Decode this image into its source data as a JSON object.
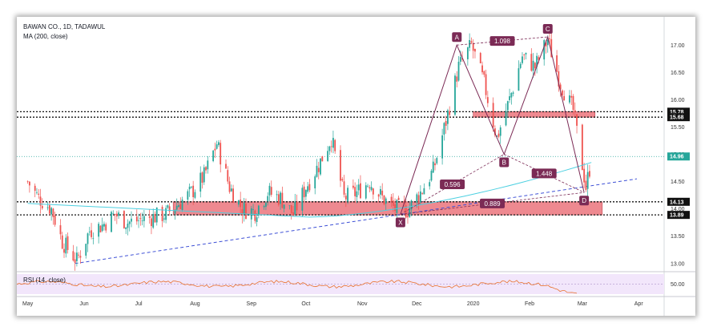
{
  "header": {
    "title": "BAWAN CO., 1D, TADAWUL",
    "ma_label": "MA (200, close)",
    "rsi_label": "RSI (14, close)"
  },
  "colors": {
    "up": "#26a69a",
    "down": "#ef5350",
    "ma": "#4dd0e1",
    "pattern": "#7b2a55",
    "trend": "#3f51d6",
    "zone": "#ea6b74",
    "price_line": "#26a69a"
  },
  "chart_data": [
    {
      "type": "candlestick",
      "title": "BAWAN CO., 1D, TADAWUL",
      "x_ticks": [
        "May",
        "Jun",
        "Jul",
        "Aug",
        "Sep",
        "Oct",
        "Nov",
        "Dec",
        "2020",
        "Feb",
        "Mar",
        "Apr"
      ],
      "y_ticks": [
        13.0,
        13.5,
        14.0,
        14.5,
        15.0,
        15.5,
        16.0,
        16.5,
        17.0
      ],
      "ylim": [
        12.85,
        17.4
      ],
      "price_badges": [
        {
          "value": "15.78",
          "style": "dark"
        },
        {
          "value": "15.68",
          "style": "dark"
        },
        {
          "value": "14.96",
          "style": "teal"
        },
        {
          "value": "14.13",
          "style": "dark"
        },
        {
          "value": "13.89",
          "style": "dark"
        }
      ],
      "horizontal_levels": [
        15.78,
        15.68,
        14.13,
        13.89
      ],
      "last_price": 14.96,
      "close_path": [
        [
          "2019-05-01",
          14.5
        ],
        [
          "2019-05-07",
          14.2
        ],
        [
          "2019-05-14",
          14.0
        ],
        [
          "2019-05-20",
          13.4
        ],
        [
          "2019-05-28",
          13.05
        ],
        [
          "2019-06-04",
          13.6
        ],
        [
          "2019-06-11",
          13.7
        ],
        [
          "2019-06-18",
          13.9
        ],
        [
          "2019-06-25",
          13.75
        ],
        [
          "2019-07-02",
          13.8
        ],
        [
          "2019-07-09",
          13.85
        ],
        [
          "2019-07-16",
          13.9
        ],
        [
          "2019-07-23",
          14.1
        ],
        [
          "2019-07-30",
          14.3
        ],
        [
          "2019-08-06",
          14.6
        ],
        [
          "2019-08-13",
          15.2
        ],
        [
          "2019-08-20",
          14.4
        ],
        [
          "2019-08-27",
          14.0
        ],
        [
          "2019-09-03",
          13.95
        ],
        [
          "2019-09-10",
          14.3
        ],
        [
          "2019-09-17",
          14.2
        ],
        [
          "2019-09-24",
          13.9
        ],
        [
          "2019-10-01",
          14.4
        ],
        [
          "2019-10-08",
          14.8
        ],
        [
          "2019-10-15",
          15.3
        ],
        [
          "2019-10-22",
          14.2
        ],
        [
          "2019-10-29",
          14.3
        ],
        [
          "2019-11-05",
          14.5
        ],
        [
          "2019-11-12",
          14.2
        ],
        [
          "2019-11-19",
          14.0
        ],
        [
          "2019-11-26",
          13.98
        ],
        [
          "2019-12-03",
          14.3
        ],
        [
          "2019-12-10",
          14.7
        ],
        [
          "2019-12-17",
          15.6
        ],
        [
          "2019-12-24",
          16.6
        ],
        [
          "2019-12-31",
          17.0
        ],
        [
          "2020-01-07",
          16.3
        ],
        [
          "2020-01-14",
          15.3
        ],
        [
          "2020-01-21",
          16.0
        ],
        [
          "2020-01-28",
          16.8
        ],
        [
          "2020-02-04",
          16.6
        ],
        [
          "2020-02-11",
          17.1
        ],
        [
          "2020-02-18",
          16.3
        ],
        [
          "2020-02-25",
          15.8
        ],
        [
          "2020-03-03",
          14.4
        ],
        [
          "2020-03-06",
          14.9
        ]
      ],
      "moving_average": {
        "name": "MA (200, close)",
        "start": 14.1,
        "low": 13.85,
        "end": 14.85
      },
      "patterns": {
        "points": [
          {
            "label": "X",
            "date": "2019-11-22",
            "price": 13.9
          },
          {
            "label": "A",
            "date": "2019-12-23",
            "price": 17.0
          },
          {
            "label": "B",
            "date": "2020-01-18",
            "price": 15.0
          },
          {
            "label": "C",
            "date": "2020-02-11",
            "price": 17.15
          },
          {
            "label": "D",
            "date": "2020-03-02",
            "price": 14.3
          }
        ],
        "ratios": [
          {
            "label": "1.098"
          },
          {
            "label": "0.596"
          },
          {
            "label": "1.448"
          },
          {
            "label": "0.889"
          }
        ]
      },
      "trendline": {
        "from": [
          "2019-05-27",
          13.0
        ],
        "to": [
          "2020-03-31",
          14.55
        ]
      },
      "zones": [
        {
          "from": "2020-01-01",
          "to": "2020-03-08",
          "low": 15.68,
          "high": 15.78
        },
        {
          "from": "2019-07-20",
          "to": "2020-03-12",
          "low": 13.89,
          "high": 14.13
        }
      ]
    },
    {
      "type": "line",
      "title": "RSI (14, close)",
      "y_ticks": [
        50.0
      ],
      "ylim": [
        30,
        70
      ]
    }
  ]
}
